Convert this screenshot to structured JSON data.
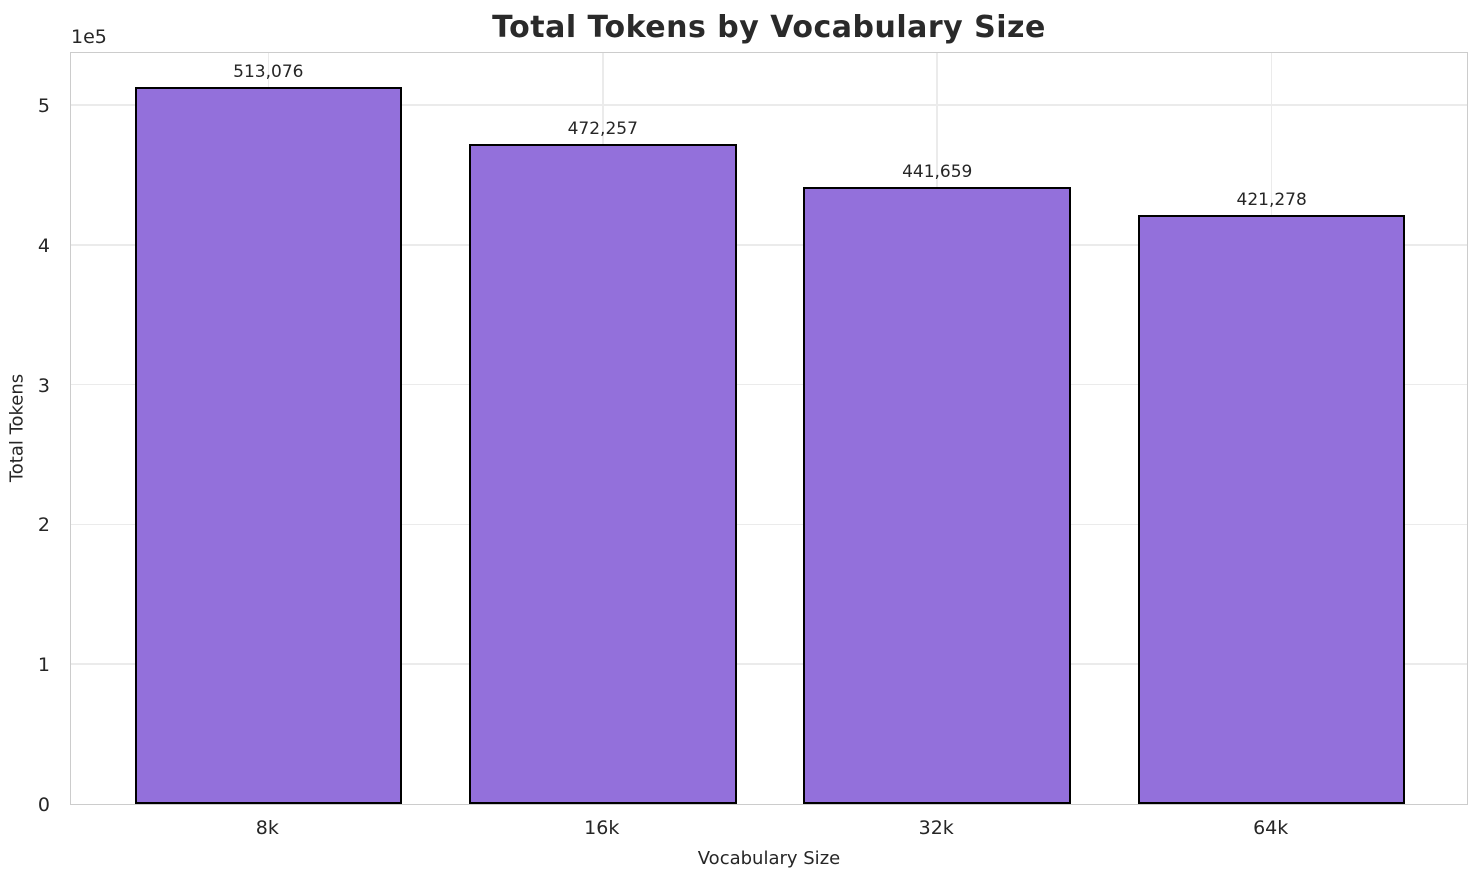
{
  "chart_data": {
    "type": "bar",
    "title": "Total Tokens by Vocabulary Size",
    "xlabel": "Vocabulary Size",
    "ylabel": "Total Tokens",
    "categories": [
      "8k",
      "16k",
      "32k",
      "64k"
    ],
    "values": [
      513076,
      472257,
      441659,
      421278
    ],
    "value_labels": [
      "513,076",
      "472,257",
      "441,659",
      "421,278"
    ],
    "ylim": [
      0,
      538730
    ],
    "yticks": [
      {
        "value": 0,
        "label": "0"
      },
      {
        "value": 100000,
        "label": "1"
      },
      {
        "value": 200000,
        "label": "2"
      },
      {
        "value": 300000,
        "label": "3"
      },
      {
        "value": 400000,
        "label": "4"
      },
      {
        "value": 500000,
        "label": "5"
      }
    ],
    "y_offset_label": "1e5",
    "grid": true,
    "legend": "none",
    "bar_color": "#9370DB",
    "bar_edge_color": "#000000"
  }
}
